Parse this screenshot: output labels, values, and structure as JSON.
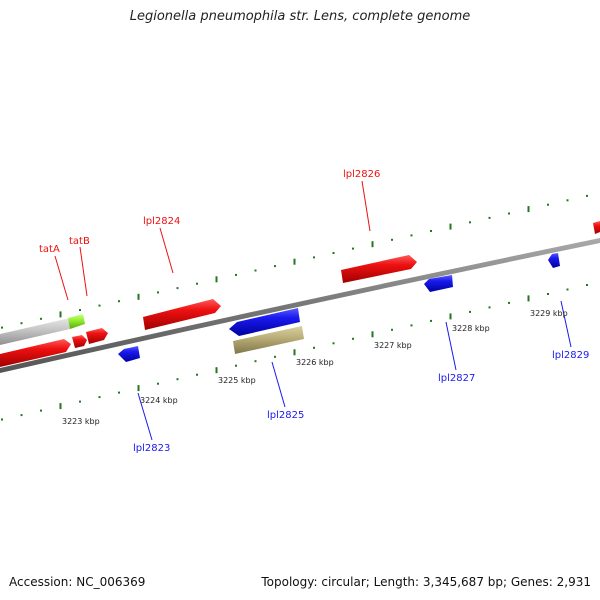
{
  "title": "Legionella pneumophila str. Lens, complete genome",
  "footer": {
    "accession_label": "Accession: NC_006369",
    "stats_label": "Topology: circular; Length: 3,345,687 bp; Genes: 2,931"
  },
  "colors": {
    "forward_gene": "#ee1111",
    "reverse_gene": "#1a1aee",
    "rna_feature": "#bbb07a",
    "gray_feature": "#c8c8c8",
    "green_feature": "#99ee33",
    "tick": "#227722",
    "backbone": "#777777"
  },
  "genes": {
    "forward": [
      {
        "label": "tatA"
      },
      {
        "label": "tatB"
      },
      {
        "label": "lpl2824"
      },
      {
        "label": "lpl2826"
      }
    ],
    "reverse": [
      {
        "label": "lpl2823"
      },
      {
        "label": "lpl2825"
      },
      {
        "label": "lpl2827"
      },
      {
        "label": "lpl2829"
      }
    ]
  },
  "scale": [
    "3223 kbp",
    "3224 kbp",
    "3225 kbp",
    "3226 kbp",
    "3227 kbp",
    "3228 kbp",
    "3229 kbp"
  ]
}
